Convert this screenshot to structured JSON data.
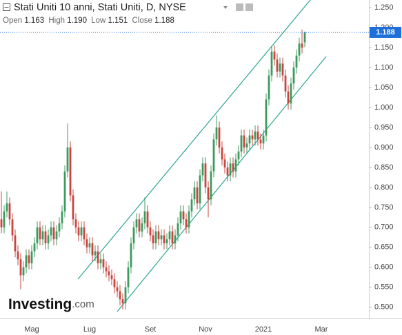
{
  "header": {
    "title": "Stati Uniti 10 anni, Stati Uniti, D, NYSE",
    "ohlc": [
      {
        "label": "Open",
        "value": "1.163"
      },
      {
        "label": "High",
        "value": "1.190"
      },
      {
        "label": "Low",
        "value": "1.151"
      },
      {
        "label": "Close",
        "value": "1.188"
      }
    ]
  },
  "logo": {
    "name": "Investing",
    "domain": ".com"
  },
  "chart_data": {
    "type": "candlestick",
    "up_color": "#3c9a5f",
    "down_color": "#c8463f",
    "channel_color": "#2aa58f",
    "tag_color": "#1e6fd9",
    "ylim": [
      0.472,
      1.269
    ],
    "yticks": [
      {
        "value": 0.5,
        "label": "0.500"
      },
      {
        "value": 0.55,
        "label": "0.550"
      },
      {
        "value": 0.6,
        "label": "0.600"
      },
      {
        "value": 0.65,
        "label": "0.650"
      },
      {
        "value": 0.7,
        "label": "0.700"
      },
      {
        "value": 0.75,
        "label": "0.750"
      },
      {
        "value": 0.8,
        "label": "0.800"
      },
      {
        "value": 0.85,
        "label": "0.850"
      },
      {
        "value": 0.9,
        "label": "0.900"
      },
      {
        "value": 0.95,
        "label": "0.950"
      },
      {
        "value": 1.0,
        "label": "1.000"
      },
      {
        "value": 1.05,
        "label": "1.050"
      },
      {
        "value": 1.1,
        "label": "1.100"
      },
      {
        "value": 1.15,
        "label": "1.150"
      },
      {
        "value": 1.2,
        "label": "1.200"
      },
      {
        "value": 1.25,
        "label": "1.250"
      }
    ],
    "categories": [
      null,
      null,
      null,
      null,
      null,
      null,
      null,
      null,
      null,
      null,
      null,
      "Mag",
      null,
      null,
      null,
      null,
      null,
      null,
      null,
      null,
      null,
      null,
      null,
      null,
      null,
      null,
      null,
      null,
      null,
      null,
      null,
      null,
      "Lug",
      null,
      null,
      null,
      null,
      null,
      null,
      null,
      null,
      null,
      null,
      null,
      null,
      null,
      null,
      null,
      null,
      null,
      null,
      null,
      null,
      null,
      "Set",
      null,
      null,
      null,
      null,
      null,
      null,
      null,
      null,
      null,
      null,
      null,
      null,
      null,
      null,
      null,
      null,
      null,
      null,
      null,
      "Nov",
      null,
      null,
      null,
      null,
      null,
      null,
      null,
      null,
      null,
      null,
      null,
      null,
      null,
      null,
      null,
      null,
      null,
      null,
      null,
      null,
      "2021",
      null,
      null,
      null,
      null,
      null,
      null,
      null,
      null,
      null,
      null,
      null,
      null,
      null,
      null,
      null,
      null,
      null,
      null,
      null,
      null,
      "Mar",
      null,
      null,
      null,
      null,
      null,
      null,
      null,
      null,
      null,
      null,
      null,
      null,
      null,
      null,
      null,
      null,
      null
    ],
    "open": [
      0.72,
      0.7,
      0.74,
      0.76,
      0.72,
      0.68,
      0.64,
      0.62,
      0.58,
      0.6,
      0.63,
      0.61,
      0.64,
      0.66,
      0.7,
      0.67,
      0.69,
      0.66,
      0.68,
      0.7,
      0.67,
      0.69,
      0.71,
      0.74,
      0.84,
      0.9,
      0.78,
      0.72,
      0.7,
      0.68,
      0.7,
      0.67,
      0.65,
      0.66,
      0.63,
      0.64,
      0.61,
      0.62,
      0.6,
      0.59,
      0.58,
      0.57,
      0.55,
      0.54,
      0.52,
      0.51,
      0.55,
      0.6,
      0.66,
      0.7,
      0.72,
      0.69,
      0.71,
      0.74,
      0.7,
      0.68,
      0.66,
      0.69,
      0.67,
      0.68,
      0.66,
      0.67,
      0.69,
      0.66,
      0.68,
      0.71,
      0.74,
      0.72,
      0.7,
      0.74,
      0.77,
      0.8,
      0.76,
      0.83,
      0.86,
      0.8,
      0.77,
      0.84,
      0.92,
      0.95,
      0.9,
      0.87,
      0.85,
      0.83,
      0.86,
      0.84,
      0.87,
      0.89,
      0.93,
      0.9,
      0.91,
      0.93,
      0.92,
      0.94,
      0.92,
      0.91,
      0.93,
      1.02,
      1.08,
      1.14,
      1.12,
      1.09,
      1.11,
      1.08,
      1.04,
      1.01,
      1.06,
      1.1,
      1.13,
      1.16,
      1.163,
      null,
      null,
      null,
      null,
      null,
      null,
      null,
      null,
      null,
      null,
      null,
      null,
      null,
      null,
      null,
      null,
      null,
      null,
      null,
      null,
      null,
      null,
      null
    ],
    "high": [
      0.79,
      0.755,
      0.79,
      0.775,
      0.735,
      0.695,
      0.655,
      0.635,
      0.615,
      0.645,
      0.645,
      0.655,
      0.675,
      0.715,
      0.715,
      0.705,
      0.705,
      0.695,
      0.715,
      0.715,
      0.705,
      0.725,
      0.755,
      0.855,
      0.96,
      0.915,
      0.795,
      0.735,
      0.715,
      0.715,
      0.715,
      0.685,
      0.675,
      0.675,
      0.655,
      0.655,
      0.635,
      0.635,
      0.615,
      0.605,
      0.595,
      0.585,
      0.565,
      0.555,
      0.535,
      0.565,
      0.615,
      0.675,
      0.715,
      0.735,
      0.735,
      0.725,
      0.775,
      0.755,
      0.715,
      0.695,
      0.705,
      0.705,
      0.695,
      0.695,
      0.685,
      0.705,
      0.705,
      0.695,
      0.725,
      0.755,
      0.755,
      0.735,
      0.755,
      0.785,
      0.815,
      0.815,
      0.845,
      0.875,
      0.875,
      0.815,
      0.855,
      0.935,
      0.98,
      0.965,
      0.915,
      0.885,
      0.865,
      0.875,
      0.875,
      0.885,
      0.905,
      0.945,
      0.945,
      0.925,
      0.945,
      0.945,
      0.955,
      0.955,
      0.935,
      0.945,
      1.035,
      1.095,
      1.155,
      1.155,
      1.135,
      1.125,
      1.125,
      1.095,
      1.055,
      1.075,
      1.115,
      1.145,
      1.175,
      1.195,
      1.19,
      null,
      null,
      null,
      null,
      null,
      null,
      null,
      null,
      null,
      null,
      null,
      null,
      null,
      null,
      null,
      null,
      null,
      null,
      null,
      null,
      null,
      null,
      null
    ],
    "low": [
      0.685,
      0.685,
      0.725,
      0.705,
      0.665,
      0.625,
      0.605,
      0.545,
      0.565,
      0.585,
      0.595,
      0.595,
      0.625,
      0.645,
      0.655,
      0.655,
      0.645,
      0.645,
      0.665,
      0.655,
      0.655,
      0.675,
      0.695,
      0.725,
      0.825,
      0.765,
      0.705,
      0.685,
      0.665,
      0.665,
      0.655,
      0.635,
      0.635,
      0.615,
      0.615,
      0.595,
      0.595,
      0.585,
      0.575,
      0.565,
      0.555,
      0.535,
      0.525,
      0.505,
      0.495,
      0.495,
      0.535,
      0.585,
      0.645,
      0.685,
      0.675,
      0.675,
      0.695,
      0.685,
      0.665,
      0.645,
      0.645,
      0.655,
      0.655,
      0.645,
      0.645,
      0.655,
      0.645,
      0.645,
      0.665,
      0.695,
      0.705,
      0.685,
      0.685,
      0.725,
      0.755,
      0.745,
      0.745,
      0.815,
      0.785,
      0.725,
      0.755,
      0.825,
      0.905,
      0.885,
      0.855,
      0.835,
      0.815,
      0.815,
      0.825,
      0.825,
      0.855,
      0.875,
      0.885,
      0.885,
      0.895,
      0.905,
      0.905,
      0.905,
      0.895,
      0.895,
      0.915,
      1.005,
      1.065,
      1.105,
      1.075,
      1.075,
      1.065,
      1.025,
      0.995,
      0.995,
      1.045,
      1.085,
      1.115,
      1.135,
      1.151,
      null,
      null,
      null,
      null,
      null,
      null,
      null,
      null,
      null,
      null,
      null,
      null,
      null,
      null,
      null,
      null,
      null,
      null,
      null,
      null,
      null,
      null,
      null
    ],
    "close": [
      0.7,
      0.74,
      0.76,
      0.72,
      0.68,
      0.64,
      0.62,
      0.58,
      0.6,
      0.63,
      0.61,
      0.64,
      0.66,
      0.7,
      0.67,
      0.69,
      0.66,
      0.68,
      0.7,
      0.67,
      0.69,
      0.71,
      0.74,
      0.84,
      0.9,
      0.78,
      0.72,
      0.7,
      0.68,
      0.7,
      0.67,
      0.65,
      0.66,
      0.63,
      0.64,
      0.61,
      0.62,
      0.6,
      0.59,
      0.58,
      0.57,
      0.55,
      0.54,
      0.52,
      0.51,
      0.55,
      0.6,
      0.66,
      0.7,
      0.72,
      0.69,
      0.71,
      0.74,
      0.7,
      0.68,
      0.66,
      0.69,
      0.67,
      0.68,
      0.66,
      0.67,
      0.69,
      0.66,
      0.68,
      0.71,
      0.74,
      0.72,
      0.7,
      0.74,
      0.77,
      0.8,
      0.76,
      0.83,
      0.86,
      0.8,
      0.77,
      0.84,
      0.92,
      0.95,
      0.9,
      0.87,
      0.85,
      0.83,
      0.86,
      0.84,
      0.87,
      0.89,
      0.93,
      0.9,
      0.91,
      0.93,
      0.92,
      0.94,
      0.92,
      0.91,
      0.93,
      1.02,
      1.08,
      1.14,
      1.12,
      1.09,
      1.11,
      1.08,
      1.04,
      1.01,
      1.06,
      1.1,
      1.13,
      1.16,
      1.15,
      1.188,
      null,
      null,
      null,
      null,
      null,
      null,
      null,
      null,
      null,
      null,
      null,
      null,
      null,
      null,
      null,
      null,
      null,
      null,
      null,
      null,
      null,
      null,
      null
    ]
  }
}
